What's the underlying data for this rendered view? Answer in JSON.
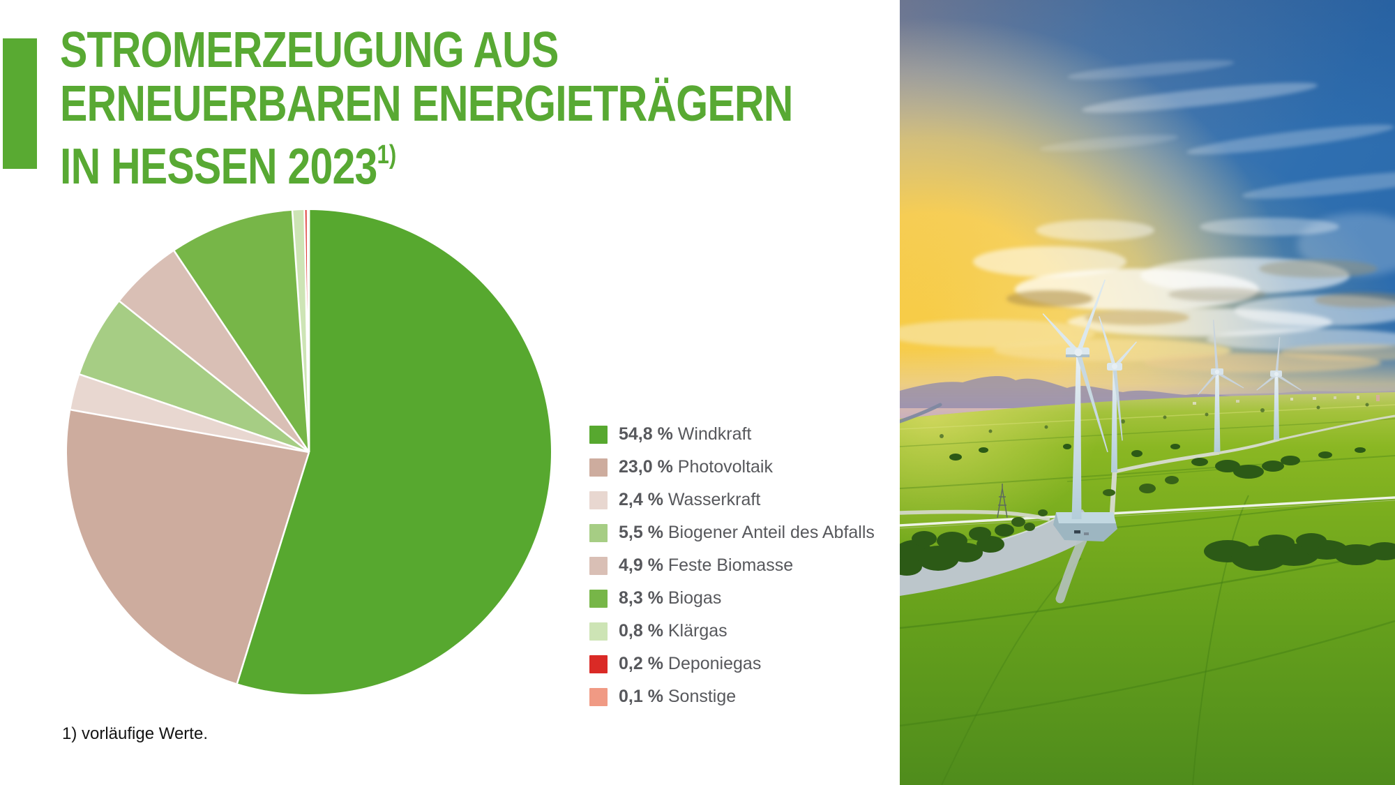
{
  "header": {
    "title_lines": [
      "STROMERZEUGUNG AUS",
      "ERNEUERBAREN ENERGIETRÄGERN",
      "IN HESSEN 2023"
    ],
    "title_superscript": "1)",
    "accent_color": "#58a933"
  },
  "chart_data": {
    "type": "pie",
    "title": "Stromerzeugung aus erneuerbaren Energieträgern in Hessen 2023",
    "unit": "%",
    "start_angle_deg": 0,
    "direction": "clockwise",
    "separator_color": "#ffffff",
    "legend_position": "right",
    "slices": [
      {
        "label": "Windkraft",
        "value": 54.8,
        "value_label": "54,8 %",
        "color": "#57a82f"
      },
      {
        "label": "Photovoltaik",
        "value": 23.0,
        "value_label": "23,0 %",
        "color": "#cdac9e"
      },
      {
        "label": "Wasserkraft",
        "value": 2.4,
        "value_label": "2,4 %",
        "color": "#e8d7d0"
      },
      {
        "label": "Biogener Anteil des Abfalls",
        "value": 5.5,
        "value_label": "5,5 %",
        "color": "#a6cd84"
      },
      {
        "label": "Feste Biomasse",
        "value": 4.9,
        "value_label": "4,9 %",
        "color": "#d9bfb5"
      },
      {
        "label": "Biogas",
        "value": 8.3,
        "value_label": "8,3 %",
        "color": "#77b648"
      },
      {
        "label": "Klärgas",
        "value": 0.8,
        "value_label": "0,8 %",
        "color": "#cde4b5"
      },
      {
        "label": "Deponiegas",
        "value": 0.2,
        "value_label": "0,2 %",
        "color": "#da2a26"
      },
      {
        "label": "Sonstige",
        "value": 0.1,
        "value_label": "0,1 %",
        "color": "#f09a84"
      }
    ]
  },
  "footnote": {
    "text": "1) vorläufige Werte."
  },
  "photo": {
    "description": "wind-turbines-in-green-fields-at-sunset"
  }
}
